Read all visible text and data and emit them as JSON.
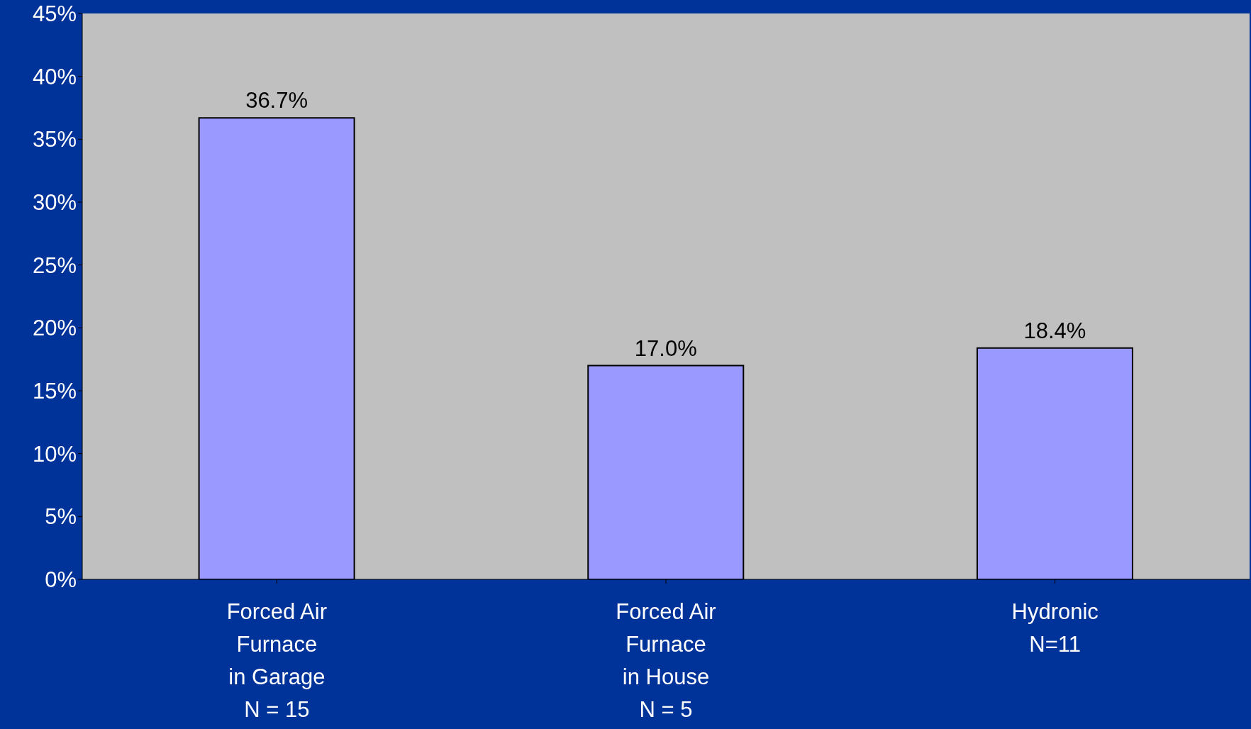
{
  "chart_data": {
    "type": "bar",
    "categories": [
      "Forced Air\nFurnace\nin Garage\nN = 15",
      "Forced Air\nFurnace\nin House\nN = 5",
      "Hydronic\nN=11"
    ],
    "values": [
      36.7,
      17.0,
      18.4
    ],
    "value_labels": [
      "36.7%",
      "17.0%",
      "18.4%"
    ],
    "color": "#9999ff",
    "ylim": [
      0,
      45
    ],
    "yticks": [
      {
        "value": 0,
        "label": "0%"
      },
      {
        "value": 5,
        "label": "5%"
      },
      {
        "value": 10,
        "label": "10%"
      },
      {
        "value": 15,
        "label": "15%"
      },
      {
        "value": 20,
        "label": "20%"
      },
      {
        "value": 25,
        "label": "25%"
      },
      {
        "value": 30,
        "label": "30%"
      },
      {
        "value": 35,
        "label": "35%"
      },
      {
        "value": 40,
        "label": "40%"
      },
      {
        "value": 45,
        "label": "45%"
      }
    ],
    "grid": false,
    "legend": false
  }
}
